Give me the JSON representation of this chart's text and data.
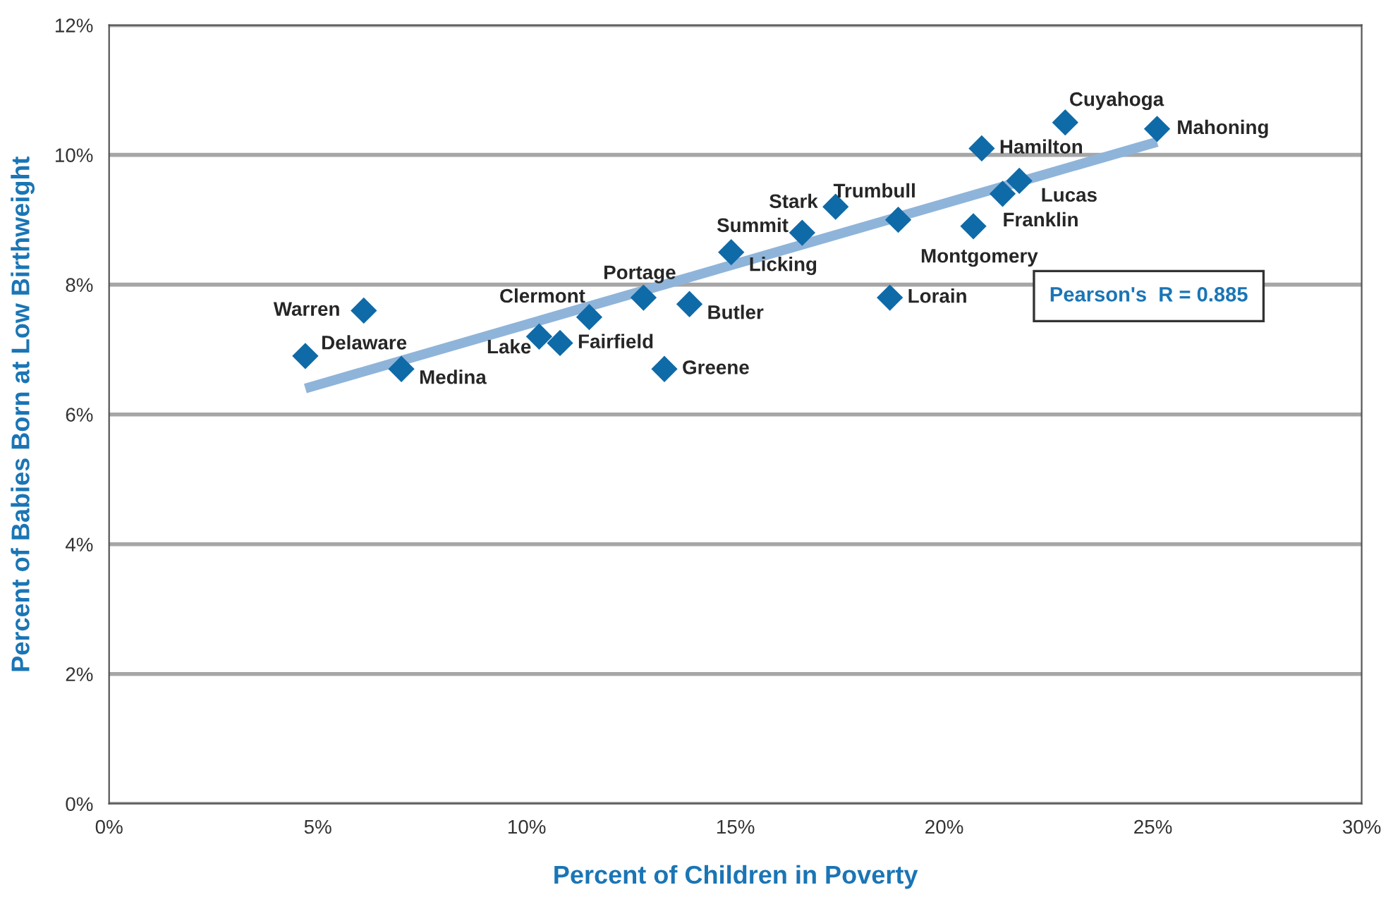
{
  "chart_data": {
    "type": "scatter",
    "xlabel": "Percent of Children in Poverty",
    "ylabel": "Percent of Babies Born at Low Birthweight",
    "xlim": [
      0,
      30
    ],
    "xticks": [
      {
        "value": 0,
        "label": "0%"
      },
      {
        "value": 5,
        "label": "5%"
      },
      {
        "value": 10,
        "label": "10%"
      },
      {
        "value": 15,
        "label": "15%"
      },
      {
        "value": 20,
        "label": "20%"
      },
      {
        "value": 25,
        "label": "25%"
      },
      {
        "value": 30,
        "label": "30%"
      }
    ],
    "ylim": [
      0,
      12
    ],
    "yticks": [
      {
        "value": 0,
        "label": "0%"
      },
      {
        "value": 2,
        "label": "2%"
      },
      {
        "value": 4,
        "label": "4%"
      },
      {
        "value": 6,
        "label": "6%"
      },
      {
        "value": 8,
        "label": "8%"
      },
      {
        "value": 10,
        "label": "10%"
      },
      {
        "value": 12,
        "label": "12%"
      }
    ],
    "grid": "y",
    "series": [
      {
        "type": "line",
        "color": "#8fb4d9",
        "x": [
          4.7,
          25.1
        ],
        "values": [
          6.4,
          10.2
        ]
      },
      {
        "marker": "diamond",
        "color": "#0f6aa8",
        "x": [
          6.1,
          4.7,
          7.0,
          10.3,
          10.8,
          11.5,
          12.8,
          13.9,
          13.3,
          14.9,
          16.6,
          17.4,
          18.9,
          18.7,
          20.7,
          21.4,
          21.8,
          20.9,
          22.9,
          25.1
        ],
        "values": [
          7.6,
          6.9,
          6.7,
          7.2,
          7.1,
          7.5,
          7.8,
          7.7,
          6.7,
          8.5,
          8.8,
          9.2,
          9.0,
          7.8,
          8.9,
          9.4,
          9.6,
          10.1,
          10.5,
          10.4
        ]
      }
    ],
    "annotations": [
      {
        "text": "Warren",
        "x": 6.1,
        "y": 7.6
      },
      {
        "text": "Delaware",
        "x": 4.7,
        "y": 6.9
      },
      {
        "text": "Medina",
        "x": 7.0,
        "y": 6.7
      },
      {
        "text": "Lake",
        "x": 10.3,
        "y": 7.2
      },
      {
        "text": "Fairfield",
        "x": 10.8,
        "y": 7.1
      },
      {
        "text": "Clermont",
        "x": 11.5,
        "y": 7.5
      },
      {
        "text": "Portage",
        "x": 12.8,
        "y": 7.8
      },
      {
        "text": "Butler",
        "x": 13.9,
        "y": 7.7
      },
      {
        "text": "Greene",
        "x": 13.3,
        "y": 6.7
      },
      {
        "text": "Licking",
        "x": 14.9,
        "y": 8.5
      },
      {
        "text": "Summit",
        "x": 16.6,
        "y": 8.8
      },
      {
        "text": "Stark",
        "x": 17.4,
        "y": 9.2
      },
      {
        "text": "Trumbull",
        "x": 18.9,
        "y": 9.0
      },
      {
        "text": "Lorain",
        "x": 18.7,
        "y": 7.8
      },
      {
        "text": "Montgomery",
        "x": 20.7,
        "y": 8.9
      },
      {
        "text": "Franklin",
        "x": 21.4,
        "y": 9.4
      },
      {
        "text": "Lucas",
        "x": 21.8,
        "y": 9.6
      },
      {
        "text": "Hamilton",
        "x": 20.9,
        "y": 10.1
      },
      {
        "text": "Cuyahoga",
        "x": 22.9,
        "y": 10.5
      },
      {
        "text": "Mahoning",
        "x": 25.1,
        "y": 10.4
      },
      "Pearson's  R = 0.885"
    ]
  }
}
